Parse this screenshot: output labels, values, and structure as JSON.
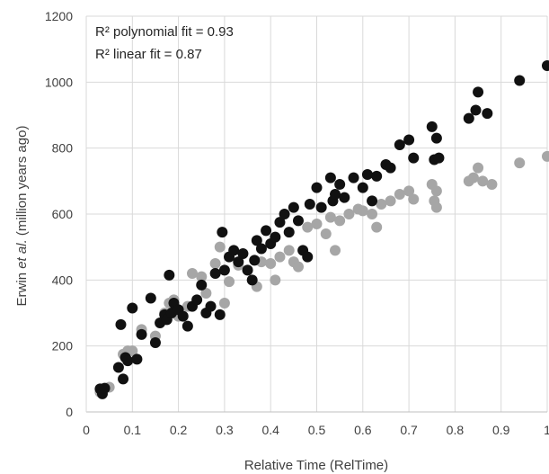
{
  "chart_data": {
    "type": "scatter",
    "title": "",
    "xlabel": "Relative Time (RelTime)",
    "ylabel_parts": [
      "Erwin ",
      "et al.",
      " (million years ago)"
    ],
    "xlim": [
      0,
      1
    ],
    "ylim": [
      0,
      1200
    ],
    "x_ticks": [
      "0",
      "0.1",
      "0.2",
      "0.3",
      "0.4",
      "0.5",
      "0.6",
      "0.7",
      "0.8",
      "0.9",
      "1"
    ],
    "y_ticks": [
      "0",
      "200",
      "400",
      "600",
      "800",
      "1000",
      "1200"
    ],
    "grid": true,
    "annotations": [
      "R² polynomial fit = 0.93",
      "R² linear fit = 0.87"
    ],
    "colors": {
      "series_dark": "#111111",
      "series_light": "#a6a6a6",
      "grid": "#d9d9d9",
      "axis": "#bfbfbf"
    },
    "series": [
      {
        "color": "#111111",
        "points": [
          [
            0.03,
            70
          ],
          [
            0.035,
            55
          ],
          [
            0.04,
            72
          ],
          [
            0.07,
            135
          ],
          [
            0.075,
            265
          ],
          [
            0.08,
            100
          ],
          [
            0.085,
            165
          ],
          [
            0.09,
            155
          ],
          [
            0.1,
            315
          ],
          [
            0.11,
            160
          ],
          [
            0.12,
            235
          ],
          [
            0.14,
            345
          ],
          [
            0.15,
            210
          ],
          [
            0.16,
            270
          ],
          [
            0.17,
            295
          ],
          [
            0.175,
            280
          ],
          [
            0.18,
            415
          ],
          [
            0.185,
            300
          ],
          [
            0.19,
            330
          ],
          [
            0.2,
            310
          ],
          [
            0.21,
            290
          ],
          [
            0.22,
            260
          ],
          [
            0.23,
            320
          ],
          [
            0.24,
            340
          ],
          [
            0.25,
            385
          ],
          [
            0.26,
            300
          ],
          [
            0.27,
            320
          ],
          [
            0.28,
            420
          ],
          [
            0.29,
            295
          ],
          [
            0.295,
            545
          ],
          [
            0.3,
            430
          ],
          [
            0.31,
            470
          ],
          [
            0.32,
            490
          ],
          [
            0.33,
            455
          ],
          [
            0.34,
            480
          ],
          [
            0.35,
            430
          ],
          [
            0.36,
            400
          ],
          [
            0.365,
            460
          ],
          [
            0.37,
            520
          ],
          [
            0.38,
            495
          ],
          [
            0.39,
            550
          ],
          [
            0.4,
            510
          ],
          [
            0.41,
            530
          ],
          [
            0.42,
            575
          ],
          [
            0.43,
            600
          ],
          [
            0.44,
            545
          ],
          [
            0.45,
            620
          ],
          [
            0.46,
            580
          ],
          [
            0.47,
            490
          ],
          [
            0.48,
            470
          ],
          [
            0.485,
            630
          ],
          [
            0.5,
            680
          ],
          [
            0.51,
            620
          ],
          [
            0.53,
            710
          ],
          [
            0.535,
            640
          ],
          [
            0.54,
            660
          ],
          [
            0.55,
            690
          ],
          [
            0.56,
            650
          ],
          [
            0.58,
            710
          ],
          [
            0.6,
            680
          ],
          [
            0.61,
            720
          ],
          [
            0.62,
            640
          ],
          [
            0.63,
            715
          ],
          [
            0.65,
            750
          ],
          [
            0.66,
            740
          ],
          [
            0.68,
            810
          ],
          [
            0.7,
            825
          ],
          [
            0.71,
            770
          ],
          [
            0.75,
            865
          ],
          [
            0.755,
            765
          ],
          [
            0.76,
            830
          ],
          [
            0.765,
            770
          ],
          [
            0.83,
            890
          ],
          [
            0.845,
            915
          ],
          [
            0.85,
            970
          ],
          [
            0.87,
            905
          ],
          [
            0.94,
            1005
          ],
          [
            1.0,
            1050
          ]
        ]
      },
      {
        "color": "#a6a6a6",
        "points": [
          [
            0.03,
            60
          ],
          [
            0.05,
            75
          ],
          [
            0.08,
            175
          ],
          [
            0.09,
            185
          ],
          [
            0.1,
            185
          ],
          [
            0.12,
            250
          ],
          [
            0.15,
            230
          ],
          [
            0.17,
            300
          ],
          [
            0.18,
            330
          ],
          [
            0.19,
            340
          ],
          [
            0.2,
            290
          ],
          [
            0.22,
            320
          ],
          [
            0.23,
            420
          ],
          [
            0.25,
            410
          ],
          [
            0.26,
            360
          ],
          [
            0.28,
            450
          ],
          [
            0.29,
            500
          ],
          [
            0.3,
            330
          ],
          [
            0.31,
            395
          ],
          [
            0.33,
            445
          ],
          [
            0.35,
            430
          ],
          [
            0.37,
            380
          ],
          [
            0.38,
            455
          ],
          [
            0.4,
            450
          ],
          [
            0.41,
            400
          ],
          [
            0.42,
            470
          ],
          [
            0.44,
            490
          ],
          [
            0.45,
            455
          ],
          [
            0.46,
            440
          ],
          [
            0.48,
            560
          ],
          [
            0.5,
            570
          ],
          [
            0.52,
            540
          ],
          [
            0.53,
            590
          ],
          [
            0.54,
            490
          ],
          [
            0.55,
            580
          ],
          [
            0.57,
            600
          ],
          [
            0.59,
            615
          ],
          [
            0.6,
            610
          ],
          [
            0.62,
            600
          ],
          [
            0.63,
            560
          ],
          [
            0.64,
            630
          ],
          [
            0.66,
            640
          ],
          [
            0.68,
            660
          ],
          [
            0.7,
            670
          ],
          [
            0.71,
            645
          ],
          [
            0.75,
            690
          ],
          [
            0.755,
            640
          ],
          [
            0.76,
            620
          ],
          [
            0.76,
            670
          ],
          [
            0.83,
            700
          ],
          [
            0.84,
            710
          ],
          [
            0.85,
            740
          ],
          [
            0.86,
            700
          ],
          [
            0.88,
            690
          ],
          [
            0.94,
            755
          ],
          [
            1.0,
            775
          ]
        ]
      }
    ]
  }
}
